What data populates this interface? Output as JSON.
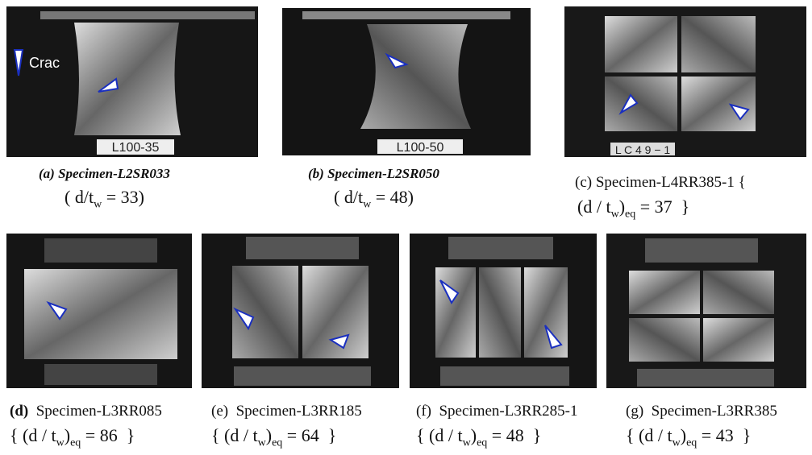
{
  "legend": {
    "label": "Crac"
  },
  "panels": [
    {
      "id": "(a)",
      "name": "Specimen-L2SR033",
      "plate": "L100-35",
      "formula": {
        "open": "(",
        "ratio": "d/t",
        "sub": "w",
        "eq": "= 33",
        "close": ")"
      }
    },
    {
      "id": "(b)",
      "name": "Specimen-L2SR050",
      "plate": "L100-50",
      "formula": {
        "open": "(",
        "ratio": "d/t",
        "sub": "w",
        "eq": "= 48",
        "close": ")"
      }
    },
    {
      "id": "(c)",
      "name": "Specimen-L4RR385-1 {",
      "plate": "L C 4 9 − 1",
      "formula": {
        "open": "(",
        "ratio": "d / t",
        "sub": "w",
        "close": ")",
        "sub2": "eq",
        "eq": "= 37",
        "end": "}"
      }
    },
    {
      "id": "(d)",
      "name": "Specimen-L3RR085",
      "formula": {
        "open": "{ (",
        "ratio": "d / t",
        "sub": "w",
        "close": ")",
        "sub2": "eq",
        "eq": "= 86",
        "end": "}"
      }
    },
    {
      "id": "(e)",
      "name": "Specimen-L3RR185",
      "formula": {
        "open": "{ (",
        "ratio": "d / t",
        "sub": "w",
        "close": ")",
        "sub2": "eq",
        "eq": "= 64",
        "end": "}"
      }
    },
    {
      "id": "(f)",
      "name": "Specimen-L3RR285-1",
      "formula": {
        "open": "{ (",
        "ratio": "d / t",
        "sub": "w",
        "close": ")",
        "sub2": "eq",
        "eq": "= 48",
        "end": "}"
      }
    },
    {
      "id": "(g)",
      "name": "Specimen-L3RR385",
      "formula": {
        "open": "{ (",
        "ratio": "d / t",
        "sub": "w",
        "close": ")",
        "sub2": "eq",
        "eq": "= 43",
        "end": "}"
      }
    }
  ]
}
